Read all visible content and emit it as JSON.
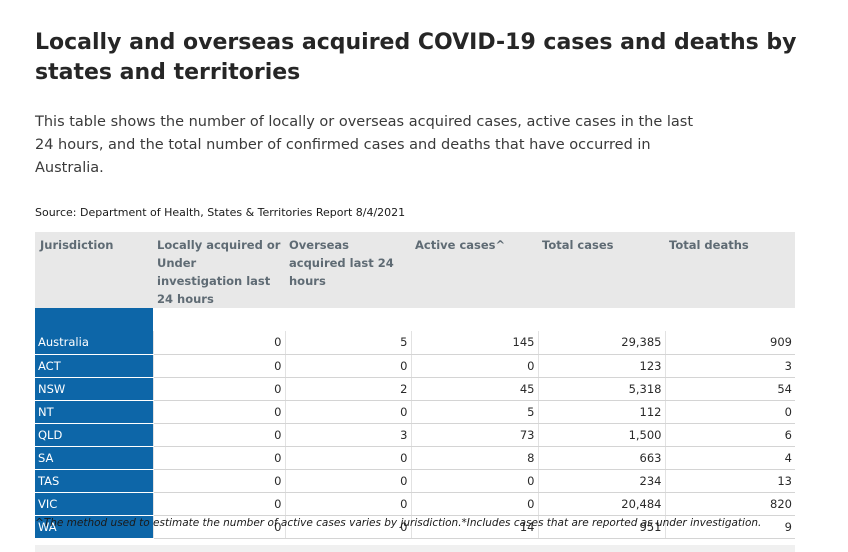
{
  "title": "Locally and overseas acquired COVID-19 cases and deaths by states and territories",
  "intro": "This table shows the number of locally or overseas acquired cases, active cases in the last 24 hours, and the total number of confirmed cases and deaths that have occurred in Australia.",
  "source": "Source: Department of Health, States & Territories Report 8/4/2021",
  "table": {
    "headers": [
      "Jurisdiction",
      "Locally acquired or Under investigation last 24 hours",
      "Overseas acquired last 24 hours",
      "Active cases^",
      "Total cases",
      "Total deaths"
    ],
    "rows": [
      {
        "jurisdiction": "Australia",
        "local": "0",
        "overseas": "5",
        "active": "145",
        "total_cases": "29,385",
        "total_deaths": "909"
      },
      {
        "jurisdiction": "ACT",
        "local": "0",
        "overseas": "0",
        "active": "0",
        "total_cases": "123",
        "total_deaths": "3"
      },
      {
        "jurisdiction": "NSW",
        "local": "0",
        "overseas": "2",
        "active": "45",
        "total_cases": "5,318",
        "total_deaths": "54"
      },
      {
        "jurisdiction": "NT",
        "local": "0",
        "overseas": "0",
        "active": "5",
        "total_cases": "112",
        "total_deaths": "0"
      },
      {
        "jurisdiction": "QLD",
        "local": "0",
        "overseas": "3",
        "active": "73",
        "total_cases": "1,500",
        "total_deaths": "6"
      },
      {
        "jurisdiction": "SA",
        "local": "0",
        "overseas": "0",
        "active": "8",
        "total_cases": "663",
        "total_deaths": "4"
      },
      {
        "jurisdiction": "TAS",
        "local": "0",
        "overseas": "0",
        "active": "0",
        "total_cases": "234",
        "total_deaths": "13"
      },
      {
        "jurisdiction": "VIC",
        "local": "0",
        "overseas": "0",
        "active": "0",
        "total_cases": "20,484",
        "total_deaths": "820"
      },
      {
        "jurisdiction": "WA",
        "local": "0",
        "overseas": "0",
        "active": "14",
        "total_cases": "951",
        "total_deaths": "9"
      }
    ]
  },
  "footnote": "^The method used to estimate the number of active cases varies by jurisdiction.*Includes cases that are reported as under investigation.",
  "colors": {
    "jurisdiction_cell": "#0d66a8",
    "header_background": "#e8e8e8",
    "header_text": "#5f6b74"
  }
}
